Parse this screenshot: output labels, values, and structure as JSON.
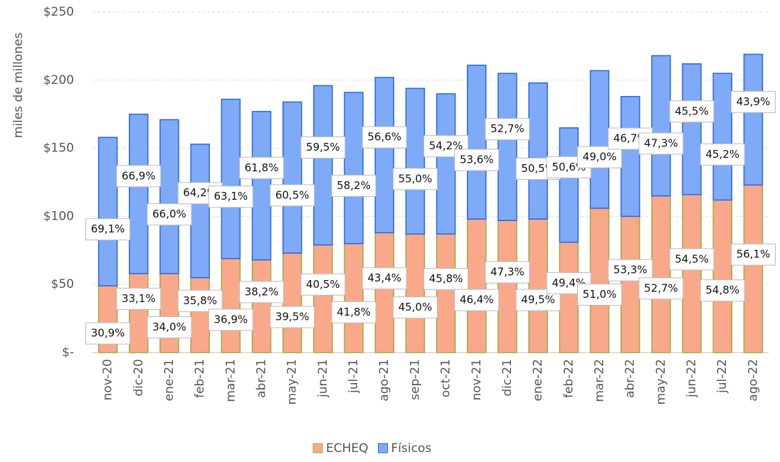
{
  "chart_data": {
    "type": "stacked_bar",
    "y_axis_label": "miles de millones",
    "categories": [
      "nov-20",
      "dic-20",
      "ene-21",
      "feb-21",
      "mar-21",
      "abr-21",
      "may-21",
      "jun-21",
      "jul-21",
      "ago-21",
      "sep-21",
      "oct-21",
      "nov-21",
      "dic-21",
      "ene-22",
      "feb-22",
      "mar-22",
      "abr-22",
      "may-22",
      "jun-22",
      "jul-22",
      "ago-22"
    ],
    "series": [
      {
        "name": "ECHEQ",
        "color": "#f9a98a",
        "edge": "#a0a840",
        "values": [
          49,
          58,
          58,
          55,
          69,
          68,
          73,
          79,
          80,
          88,
          87,
          87,
          98,
          97,
          98,
          81,
          106,
          100,
          115,
          116,
          112,
          123
        ],
        "percent_labels": [
          "30,9%",
          "33,1%",
          "34,0%",
          "35,8%",
          "36,9%",
          "38,2%",
          "39,5%",
          "40,5%",
          "41,8%",
          "43,4%",
          "45,0%",
          "45,8%",
          "46,4%",
          "47,3%",
          "49,5%",
          "49,4%",
          "51,0%",
          "53,3%",
          "52,7%",
          "54,5%",
          "54,8%",
          "56,1%"
        ]
      },
      {
        "name": "Físicos",
        "color": "#7eaaf8",
        "edge": "#2a66e0",
        "values": [
          109,
          117,
          113,
          98,
          117,
          109,
          111,
          117,
          111,
          114,
          107,
          103,
          113,
          108,
          100,
          84,
          101,
          88,
          103,
          96,
          93,
          96
        ],
        "percent_labels": [
          "69,1%",
          "66,9%",
          "66,0%",
          "64,2%",
          "63,1%",
          "61,8%",
          "60,5%",
          "59,5%",
          "58,2%",
          "56,6%",
          "55,0%",
          "54,2%",
          "53,6%",
          "52,7%",
          "50,5%",
          "50,6%",
          "49,0%",
          "46,7%",
          "47,3%",
          "45,5%",
          "45,2%",
          "43,9%"
        ]
      }
    ],
    "ylim": [
      0,
      250
    ],
    "yticks": [
      {
        "value": 0,
        "label": "$-"
      },
      {
        "value": 50,
        "label": "$50"
      },
      {
        "value": 100,
        "label": "$100"
      },
      {
        "value": 150,
        "label": "$150"
      },
      {
        "value": 200,
        "label": "$200"
      },
      {
        "value": 250,
        "label": "$250"
      }
    ],
    "grid": true,
    "legend": "bottom"
  }
}
